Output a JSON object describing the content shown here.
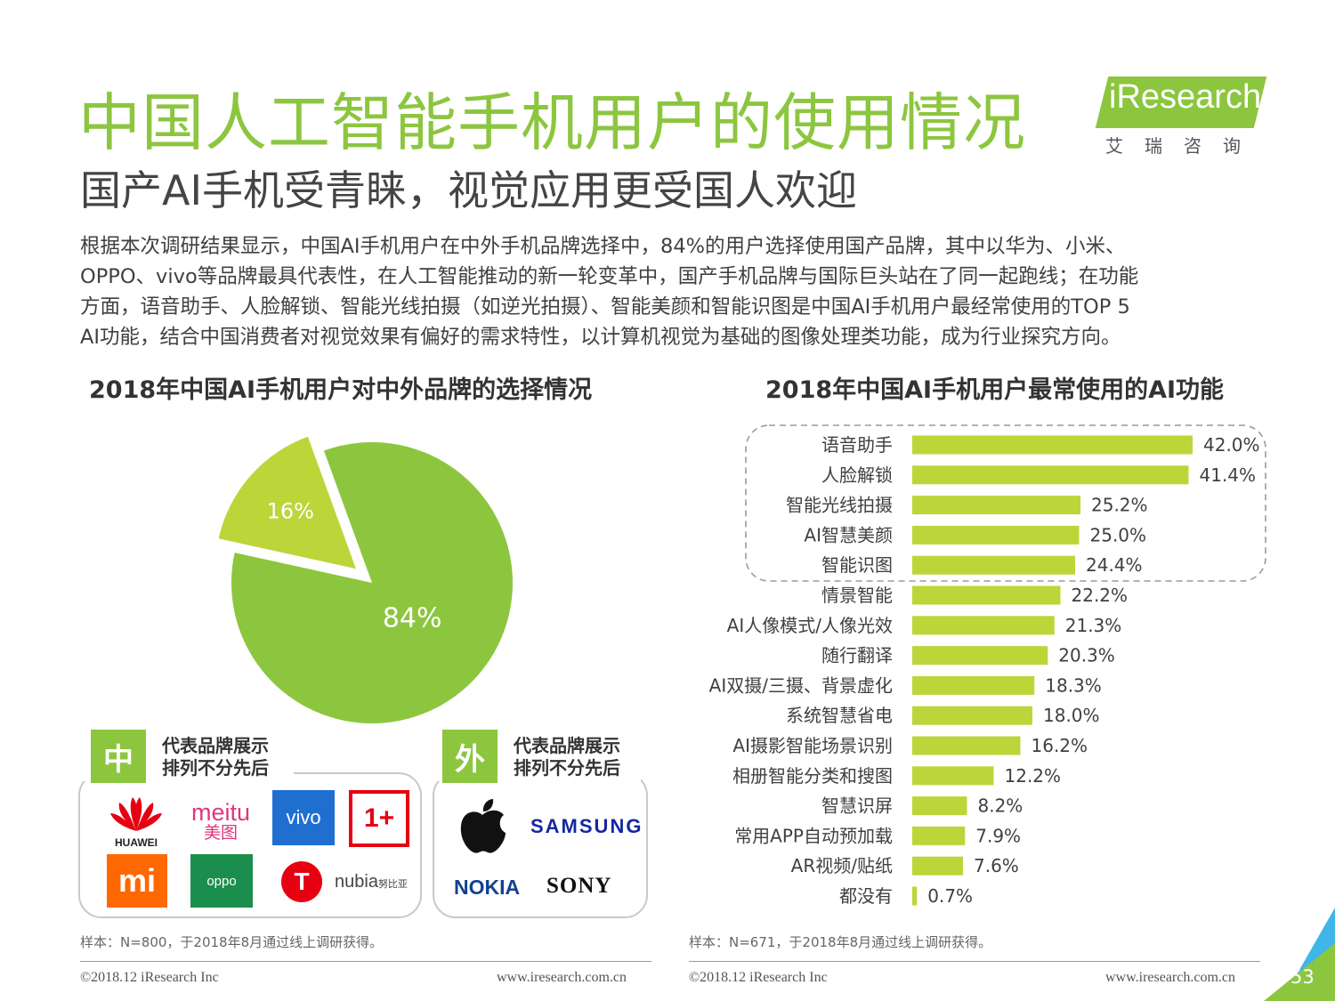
{
  "header": {
    "title": "中国人工智能手机用户的使用情况",
    "subtitle": "国产AI手机受青睐，视觉应用更受国人欢迎",
    "logo_word": "iResearch",
    "logo_cn": "艾瑞咨询"
  },
  "paragraph": [
    "根据本次调研结果显示，中国AI手机用户在中外手机品牌选择中，84%的用户选择使用国产品牌，其中以华为、小米、",
    "OPPO、vivo等品牌最具代表性，在人工智能推动的新一轮变革中，国产手机品牌与国际巨头站在了同一起跑线；在功能",
    "方面，语音助手、人脸解锁、智能光线拍摄（如逆光拍摄）、智能美颜和智能识图是中国AI手机用户最经常使用的TOP 5",
    "AI功能，结合中国消费者对视觉效果有偏好的需求特性，以计算机视觉为基础的图像处理类功能，成为行业探究方向。"
  ],
  "left_section": {
    "title": "2018年中国AI手机用户对中外品牌的选择情况",
    "domestic_tag": "中",
    "foreign_tag": "外",
    "tag_text_line1": "代表品牌展示",
    "tag_text_line2": "排列不分先后",
    "domestic_brands": [
      "HUAWEI",
      "meitu",
      "美图",
      "vivo",
      "1+",
      "mi",
      "oppo",
      "T",
      "nubia",
      "努比亚"
    ],
    "foreign_brands": [
      "SAMSUNG",
      "NOKIA",
      "SONY"
    ],
    "note": "样本：N=800，于2018年8月通过线上调研获得。"
  },
  "right_section": {
    "title": "2018年中国AI手机用户最常使用的AI功能",
    "note": "样本：N=671，于2018年8月通过线上调研获得。"
  },
  "chart_data": [
    {
      "type": "pie",
      "labels": [
        "16%",
        "84%"
      ],
      "values": [
        16,
        84
      ],
      "colors": [
        "#bcd63a",
        "#8cc63f"
      ]
    },
    {
      "type": "bar",
      "orientation": "horizontal",
      "categories": [
        "语音助手",
        "人脸解锁",
        "智能光线拍摄",
        "AI智慧美颜",
        "智能识图",
        "情景智能",
        "AI人像模式/人像光效",
        "随行翻译",
        "AI双摄/三摄、背景虚化",
        "系统智慧省电",
        "AI摄影智能场景识别",
        "相册智能分类和搜图",
        "智慧识屏",
        "常用APP自动预加载",
        "AR视频/贴纸",
        "都没有"
      ],
      "values": [
        42.0,
        41.4,
        25.2,
        25.0,
        24.4,
        22.2,
        21.3,
        20.3,
        18.3,
        18.0,
        16.2,
        12.2,
        8.2,
        7.9,
        7.6,
        0.7
      ],
      "value_labels": [
        "42.0%",
        "41.4%",
        "25.2%",
        "25.0%",
        "24.4%",
        "22.2%",
        "21.3%",
        "20.3%",
        "18.3%",
        "18.0%",
        "16.2%",
        "12.2%",
        "8.2%",
        "7.9%",
        "7.6%",
        "0.7%"
      ],
      "color": "#bcd63a",
      "highlight_top": 5
    }
  ],
  "footer": {
    "copyright": "©2018.12 iResearch Inc",
    "website": "www.iresearch.com.cn",
    "page": "53"
  },
  "colors": {
    "accent": "#8cc63f",
    "bar": "#bcd63a",
    "corner_blue": "#3fb6e8"
  }
}
